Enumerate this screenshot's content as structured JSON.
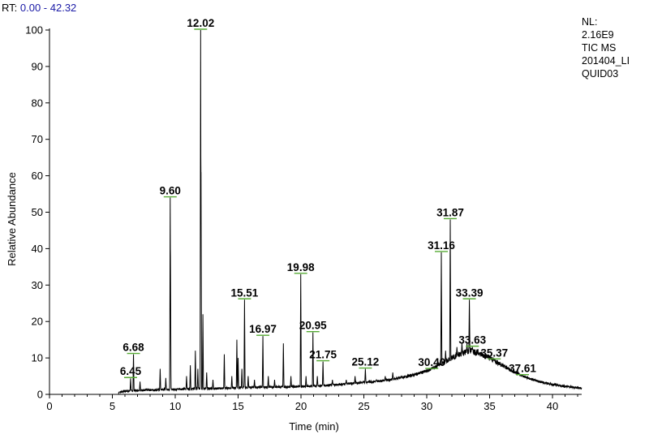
{
  "header": {
    "rt_key": "RT:",
    "rt_range": "0.00 - 42.32"
  },
  "info": {
    "nl_key": "NL:",
    "nl_value": "2.16E9",
    "scan_filter": "TIC  MS",
    "file_line1": "201404_LI",
    "file_line2": "QUID03"
  },
  "colors": {
    "trace": "#000000",
    "rt_value": "#1a1aa6",
    "label_marker": "#55aa33"
  },
  "chart_data": {
    "type": "line",
    "xlabel": "Time (min)",
    "ylabel": "Relative Abundance",
    "xlim": [
      0,
      42.32
    ],
    "ylim": [
      0,
      100
    ],
    "x_ticks": [
      0,
      5,
      10,
      15,
      20,
      25,
      30,
      35,
      40
    ],
    "y_ticks": [
      0,
      10,
      20,
      30,
      40,
      50,
      60,
      70,
      80,
      90,
      100
    ],
    "grid": false,
    "baseline": [
      [
        5.5,
        0.6
      ],
      [
        6,
        0.9
      ],
      [
        7,
        1.1
      ],
      [
        8,
        1.2
      ],
      [
        9,
        1.3
      ],
      [
        10,
        1.4
      ],
      [
        11,
        1.5
      ],
      [
        12,
        1.6
      ],
      [
        13,
        1.6
      ],
      [
        14,
        1.7
      ],
      [
        15,
        1.8
      ],
      [
        16,
        1.9
      ],
      [
        17,
        2.0
      ],
      [
        18,
        2.0
      ],
      [
        19,
        2.1
      ],
      [
        20,
        2.2
      ],
      [
        21,
        2.3
      ],
      [
        22,
        2.5
      ],
      [
        23,
        2.7
      ],
      [
        24,
        3.0
      ],
      [
        25,
        3.3
      ],
      [
        26,
        3.6
      ],
      [
        27,
        4.0
      ],
      [
        28,
        4.6
      ],
      [
        29,
        5.4
      ],
      [
        30,
        6.4
      ],
      [
        31,
        8.0
      ],
      [
        32,
        10.0
      ],
      [
        33,
        11.5
      ],
      [
        33.5,
        12.0
      ],
      [
        34,
        11.5
      ],
      [
        35,
        10.0
      ],
      [
        36,
        8.0
      ],
      [
        37,
        6.0
      ],
      [
        38,
        4.5
      ],
      [
        39,
        3.5
      ],
      [
        40,
        2.7
      ],
      [
        41,
        2.2
      ],
      [
        42.32,
        1.7
      ]
    ],
    "peaks": [
      {
        "rt": 6.45,
        "height": 4.4,
        "label": "6.45"
      },
      {
        "rt": 6.68,
        "height": 11,
        "label": "6.68"
      },
      {
        "rt": 7.2,
        "height": 3.5
      },
      {
        "rt": 8.8,
        "height": 7
      },
      {
        "rt": 9.25,
        "height": 4.5
      },
      {
        "rt": 9.6,
        "height": 54,
        "label": "9.60"
      },
      {
        "rt": 9.62,
        "height": 38
      },
      {
        "rt": 10.9,
        "height": 5
      },
      {
        "rt": 11.2,
        "height": 8
      },
      {
        "rt": 11.6,
        "height": 12
      },
      {
        "rt": 11.8,
        "height": 7
      },
      {
        "rt": 12.02,
        "height": 100,
        "label": "12.02"
      },
      {
        "rt": 12.05,
        "height": 61
      },
      {
        "rt": 12.2,
        "height": 22
      },
      {
        "rt": 12.5,
        "height": 6
      },
      {
        "rt": 13.0,
        "height": 4
      },
      {
        "rt": 13.9,
        "height": 11
      },
      {
        "rt": 14.5,
        "height": 5
      },
      {
        "rt": 14.9,
        "height": 15
      },
      {
        "rt": 15.0,
        "height": 10
      },
      {
        "rt": 15.3,
        "height": 7
      },
      {
        "rt": 15.51,
        "height": 26,
        "label": "15.51"
      },
      {
        "rt": 15.8,
        "height": 5
      },
      {
        "rt": 16.3,
        "height": 4
      },
      {
        "rt": 16.97,
        "height": 16,
        "label": "16.97"
      },
      {
        "rt": 17.4,
        "height": 5
      },
      {
        "rt": 17.9,
        "height": 4
      },
      {
        "rt": 18.6,
        "height": 14
      },
      {
        "rt": 19.2,
        "height": 5
      },
      {
        "rt": 19.98,
        "height": 33,
        "label": "19.98"
      },
      {
        "rt": 20.4,
        "height": 5
      },
      {
        "rt": 20.95,
        "height": 17,
        "label": "20.95"
      },
      {
        "rt": 21.3,
        "height": 5
      },
      {
        "rt": 21.75,
        "height": 9,
        "label": "21.75"
      },
      {
        "rt": 22.5,
        "height": 4
      },
      {
        "rt": 23.6,
        "height": 4
      },
      {
        "rt": 24.3,
        "height": 5
      },
      {
        "rt": 25.12,
        "height": 7,
        "label": "25.12"
      },
      {
        "rt": 26.0,
        "height": 4
      },
      {
        "rt": 26.7,
        "height": 5
      },
      {
        "rt": 27.3,
        "height": 6
      },
      {
        "rt": 28.0,
        "height": 5
      },
      {
        "rt": 29.5,
        "height": 6
      },
      {
        "rt": 30.4,
        "height": 6.9,
        "label": "30.40"
      },
      {
        "rt": 30.9,
        "height": 9
      },
      {
        "rt": 31.16,
        "height": 39,
        "label": "31.16"
      },
      {
        "rt": 31.5,
        "height": 12
      },
      {
        "rt": 31.87,
        "height": 48,
        "label": "31.87"
      },
      {
        "rt": 32.4,
        "height": 13
      },
      {
        "rt": 32.8,
        "height": 14
      },
      {
        "rt": 33.2,
        "height": 14
      },
      {
        "rt": 33.39,
        "height": 26,
        "label": "33.39"
      },
      {
        "rt": 33.63,
        "height": 13,
        "label": "33.63"
      },
      {
        "rt": 34.2,
        "height": 11
      },
      {
        "rt": 34.8,
        "height": 10
      },
      {
        "rt": 35.37,
        "height": 9.5,
        "label": "35.37"
      },
      {
        "rt": 36.2,
        "height": 8
      },
      {
        "rt": 36.8,
        "height": 6
      },
      {
        "rt": 37.61,
        "height": 5.2,
        "label": "37.61"
      }
    ]
  }
}
